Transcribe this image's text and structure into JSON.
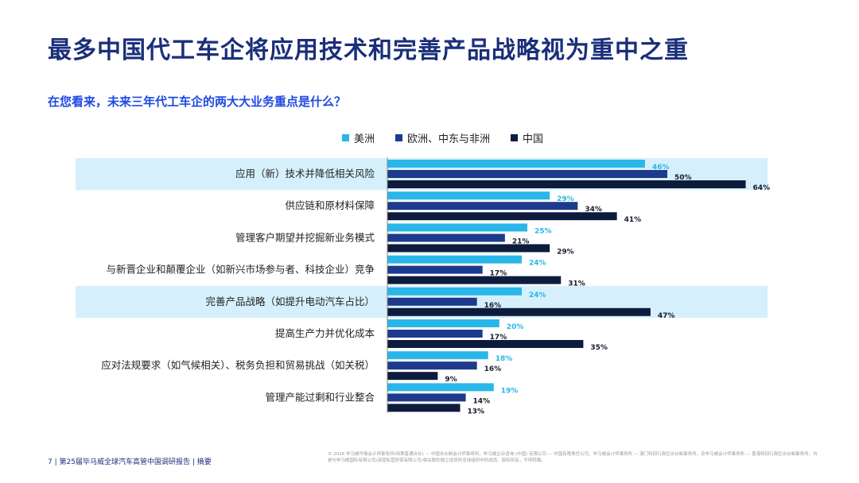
{
  "title": "最多中国代工车企将应用技术和完善产品战略视为重中之重",
  "subtitle": "在您看来，未来三年代工车企的两大大业务重点是什么？",
  "colors": {
    "americas": "#29b6e8",
    "emea": "#1e3a8c",
    "china": "#0d1c3d",
    "highlight": "#d6f0fb",
    "title": "#1a2f7a"
  },
  "chart_data": {
    "type": "bar",
    "orientation": "horizontal",
    "title": "在您看来，未来三年代工车企的两大大业务重点是什么？",
    "legend_position": "top",
    "value_suffix": "%",
    "xlim": [
      0,
      70
    ],
    "highlighted_categories": [
      0,
      4
    ],
    "categories": [
      "应用（新）技术并降低相关风险",
      "供应链和原材料保障",
      "管理客户期望并挖掘新业务模式",
      "与新晋企业和颠覆企业（如新兴市场参与者、科技企业）竞争",
      "完善产品战略（如提升电动汽车占比）",
      "提高生产力并优化成本",
      "应对法规要求（如气候相关）、税务负担和贸易挑战（如关税）",
      "管理产能过剩和行业整合"
    ],
    "series": [
      {
        "name": "美洲",
        "color": "#29b6e8",
        "values": [
          46,
          29,
          25,
          24,
          24,
          20,
          18,
          19
        ]
      },
      {
        "name": "欧洲、中东与非洲",
        "color": "#1e3a8c",
        "values": [
          50,
          34,
          21,
          17,
          16,
          17,
          16,
          14
        ]
      },
      {
        "name": "中国",
        "color": "#0d1c3d",
        "values": [
          64,
          41,
          29,
          31,
          47,
          35,
          9,
          13
        ]
      }
    ]
  },
  "footer": {
    "page_number": "7",
    "report": "第25届毕马威全球汽车高管中国调研报告",
    "section": "摘要",
    "legal": "© 2026 毕马威华振会计师事务所(特殊普通合伙) — 中国合伙制会计师事务所，毕马威企业咨询 (中国) 有限公司 — 中国有限责任公司，毕马威会计师事务所 — 澳门特别行政区合伙制事务所，及毕马威会计师事务所 — 香港特别行政区合伙制事务所，均是与毕马威国际有限公司(英国私营担保有限公司)相关联的独立成员所全球组织中的成员。版权所有，不得转载。"
  }
}
